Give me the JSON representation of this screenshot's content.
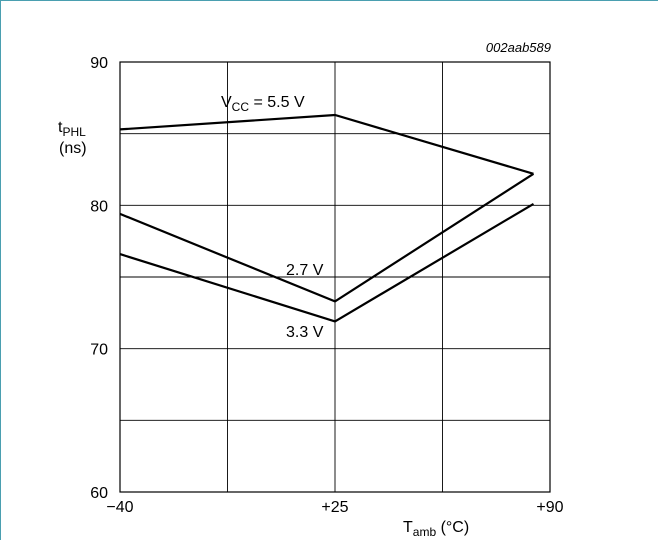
{
  "chart_data": {
    "type": "line",
    "figure_id": "002aab589",
    "ylabel_main": "t",
    "ylabel_sub": "PHL",
    "ylabel_unit": "(ns)",
    "xlabel_main": "T",
    "xlabel_sub": "amb",
    "xlabel_unit": " (°C)",
    "xlim": [
      -40,
      90
    ],
    "ylim": [
      60,
      90
    ],
    "x_ticks": [
      {
        "value": -40,
        "label": "−40"
      },
      {
        "value": 25,
        "label": "+25"
      },
      {
        "value": 90,
        "label": "+90"
      }
    ],
    "y_ticks": [
      {
        "value": 60,
        "label": "60"
      },
      {
        "value": 70,
        "label": "70"
      },
      {
        "value": 80,
        "label": "80"
      },
      {
        "value": 90,
        "label": "90"
      }
    ],
    "grid_x": [
      -40,
      -7.5,
      25,
      57.5,
      90
    ],
    "grid_y": [
      60,
      65,
      70,
      75,
      80,
      85,
      90
    ],
    "series": [
      {
        "name": "5.5 V",
        "x": [
          -40,
          25,
          85
        ],
        "y": [
          85.3,
          86.3,
          82.2
        ]
      },
      {
        "name": "2.7 V",
        "x": [
          -40,
          25,
          85
        ],
        "y": [
          79.4,
          73.3,
          82.2
        ]
      },
      {
        "name": "3.3 V",
        "x": [
          -40,
          25,
          85
        ],
        "y": [
          76.6,
          71.9,
          80.1
        ]
      }
    ],
    "annotations": {
      "vcc_label_main": "V",
      "vcc_label_sub": "CC",
      "vcc_label_value": " = 5.5 V",
      "label_2v7": "2.7 V",
      "label_3v3": "3.3 V"
    }
  }
}
